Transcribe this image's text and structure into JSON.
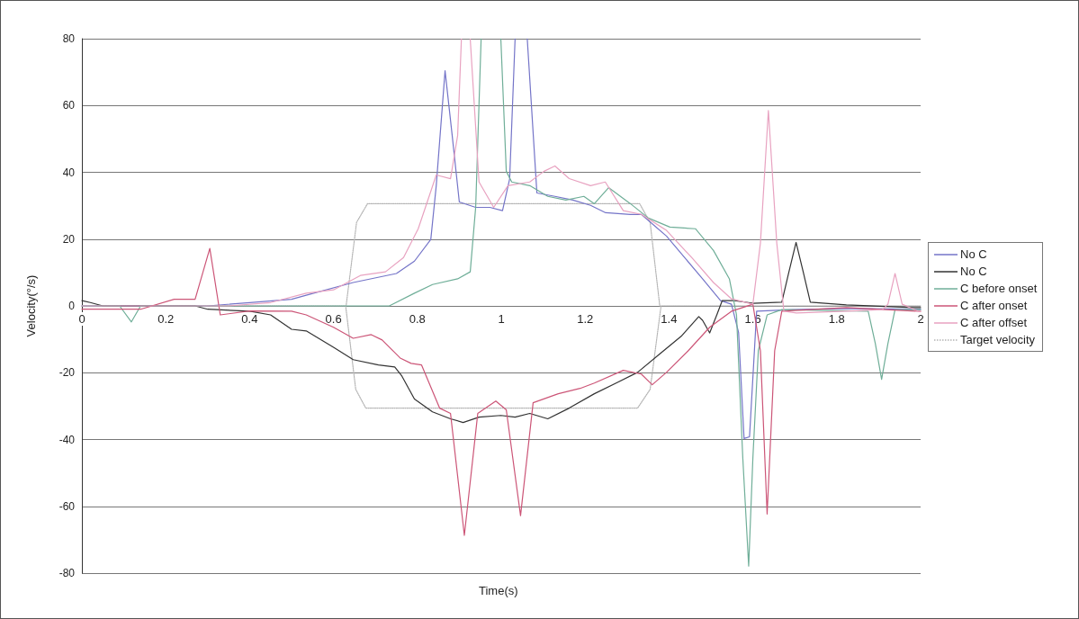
{
  "chart_data": {
    "type": "line",
    "xlabel": "Time(s)",
    "ylabel": "Velocity(°/s)",
    "xlim": [
      0,
      2
    ],
    "xticks": [
      0,
      0.2,
      0.4,
      0.6,
      0.8,
      1,
      1.2,
      1.4,
      1.6,
      1.8,
      2
    ],
    "ylim": [
      -80,
      80
    ],
    "yticks": [
      -80,
      -60,
      -40,
      -20,
      0,
      20,
      40,
      60,
      80
    ],
    "grid": "y",
    "legend": "right",
    "marker": "none",
    "line_style": "solid",
    "series": [
      {
        "name": "No C",
        "color": "#7474c8",
        "x": [
          0,
          0.3,
          0.4,
          0.5,
          0.535,
          0.647,
          0.75,
          0.793,
          0.832,
          0.845,
          0.866,
          0.883,
          0.9,
          0.939,
          0.973,
          1.003,
          1.02,
          1.033,
          null,
          1.062,
          1.085,
          1.128,
          1.171,
          1.213,
          1.249,
          1.308,
          1.334,
          1.394,
          1.437,
          1.48,
          1.523,
          1.549,
          1.566,
          1.579,
          1.592,
          1.609,
          1.695,
          1.824,
          1.983,
          2
        ],
        "values": [
          0,
          0,
          1,
          2,
          3.2,
          7,
          9.7,
          13.4,
          19.9,
          36,
          70.4,
          51,
          31.1,
          29.5,
          29.5,
          28.5,
          38,
          80,
          null,
          80,
          33.8,
          32.8,
          31.7,
          30.1,
          27.9,
          27.4,
          27.4,
          20.9,
          14.5,
          8.1,
          1.6,
          0.5,
          -8,
          -39.7,
          -39.2,
          -1.6,
          -1.1,
          -0.8,
          -1,
          -1
        ]
      },
      {
        "name": "No C",
        "color": "#333333",
        "x": [
          0,
          0.02,
          0.05,
          0.27,
          0.3,
          0.4,
          0.45,
          0.5,
          0.535,
          0.6,
          0.647,
          0.707,
          0.746,
          0.763,
          0.793,
          0.836,
          0.879,
          0.909,
          0.947,
          0.999,
          1.033,
          1.068,
          1.111,
          1.162,
          1.222,
          1.274,
          1.325,
          1.377,
          1.429,
          1.471,
          1.48,
          1.497,
          1.514,
          1.527,
          1.557,
          1.6,
          1.669,
          1.686,
          1.703,
          1.72,
          1.737,
          1.823,
          1.983,
          2
        ],
        "values": [
          1.6,
          1,
          0,
          0,
          -1,
          -1.6,
          -2.7,
          -7,
          -7.5,
          -12.4,
          -16.1,
          -17.7,
          -18.3,
          -21,
          -27.9,
          -31.7,
          -33.8,
          -34.9,
          -33.3,
          -32.8,
          -33.3,
          -32.2,
          -33.8,
          -30.6,
          -26.3,
          -23.1,
          -19.9,
          -14.5,
          -9.1,
          -3.2,
          -4.3,
          -8.1,
          -2.7,
          1.6,
          1.6,
          0.8,
          1.1,
          10.2,
          19,
          10.2,
          1.1,
          0.3,
          -0.5,
          -0.5
        ]
      },
      {
        "name": "C before onset",
        "color": "#6fae98",
        "x": [
          0,
          0.09,
          0.118,
          0.14,
          0.733,
          0.793,
          0.836,
          0.896,
          0.926,
          0.939,
          0.952,
          null,
          0.999,
          1.012,
          1.025,
          1.068,
          1.111,
          1.154,
          1.197,
          1.222,
          1.256,
          1.308,
          1.351,
          1.402,
          1.463,
          1.506,
          1.544,
          1.561,
          1.576,
          1.59,
          1.6,
          1.613,
          1.634,
          1.669,
          1.875,
          1.892,
          1.907,
          1.922,
          1.939,
          1.995,
          2
        ],
        "values": [
          0,
          0,
          -4.8,
          0,
          0,
          3.8,
          6.4,
          8.1,
          10.2,
          29.5,
          80,
          null,
          80,
          40.3,
          37.1,
          36,
          32.8,
          31.7,
          32.8,
          30.6,
          35.4,
          30.6,
          26.3,
          23.6,
          23.1,
          16.6,
          8.1,
          -2.7,
          -45.6,
          -77.9,
          -45.6,
          -13.4,
          -2.7,
          -1.1,
          -1.6,
          -11.3,
          -22,
          -11.3,
          -1.1,
          -1.1,
          -1.1
        ]
      },
      {
        "name": "C after onset",
        "color": "#cc5577",
        "x": [
          0,
          0.14,
          0.22,
          0.27,
          0.305,
          0.33,
          0.4,
          0.5,
          0.535,
          0.6,
          0.647,
          0.69,
          0.716,
          0.759,
          0.785,
          0.81,
          0.853,
          0.879,
          0.912,
          0.944,
          0.987,
          1.012,
          1.046,
          1.076,
          1.136,
          1.188,
          1.222,
          1.291,
          1.334,
          1.36,
          1.394,
          1.446,
          1.497,
          1.549,
          1.6,
          1.618,
          1.634,
          1.652,
          1.669,
          1.823,
          1.995,
          2
        ],
        "values": [
          -1,
          -1,
          2,
          2,
          17.2,
          -2.7,
          -1.5,
          -1.6,
          -2.7,
          -6.4,
          -9.7,
          -8.6,
          -10.2,
          -15.6,
          -17.2,
          -17.7,
          -30.6,
          -32.2,
          -68.7,
          -32.2,
          -28.5,
          -31.1,
          -62.8,
          -29,
          -26.3,
          -24.7,
          -23.1,
          -19.3,
          -20.4,
          -23.6,
          -19.9,
          -13.4,
          -6.4,
          -1.6,
          0.5,
          -13.4,
          -62.3,
          -13.4,
          -1.6,
          -0.5,
          -1.6,
          -1.6
        ]
      },
      {
        "name": "C after offset",
        "color": "#e8a2c0",
        "x": [
          0,
          0.35,
          0.45,
          0.535,
          0.6,
          0.664,
          0.724,
          0.767,
          0.802,
          0.828,
          0.845,
          0.879,
          0.896,
          0.905,
          null,
          0.926,
          0.947,
          0.982,
          1.016,
          1.068,
          1.102,
          1.128,
          1.162,
          1.213,
          1.248,
          1.291,
          1.334,
          1.394,
          1.454,
          1.506,
          1.549,
          1.6,
          1.618,
          1.637,
          1.657,
          1.674,
          1.704,
          1.823,
          1.909,
          1.922,
          1.939,
          1.956,
          1.995,
          2
        ],
        "values": [
          0,
          0,
          1,
          3.8,
          4.8,
          9.1,
          10.2,
          14.5,
          23.1,
          32.8,
          39.2,
          38.1,
          51,
          80,
          null,
          80,
          37.1,
          29.5,
          36,
          37.1,
          40.3,
          41.9,
          38.1,
          36,
          37.1,
          28.5,
          27.4,
          22.6,
          14.5,
          7,
          2.1,
          0.5,
          18.8,
          58.5,
          18.8,
          -1.6,
          -2.1,
          -1.6,
          -1.1,
          0.5,
          9.7,
          0.5,
          -1.6,
          -1.6
        ]
      },
      {
        "name": "Target velocity",
        "color": "#b4b4b4",
        "line_style": "dotted",
        "x": [
          0,
          0.63,
          0.655,
          0.681,
          1.33,
          1.355,
          1.378,
          2,
          null,
          0,
          0.629,
          0.653,
          0.677,
          1.325,
          1.355,
          1.381,
          2
        ],
        "values": [
          0,
          0,
          25,
          30.6,
          30.6,
          25,
          0,
          0,
          null,
          0,
          0,
          -25,
          -30.6,
          -30.6,
          -25,
          0,
          0
        ]
      }
    ]
  }
}
